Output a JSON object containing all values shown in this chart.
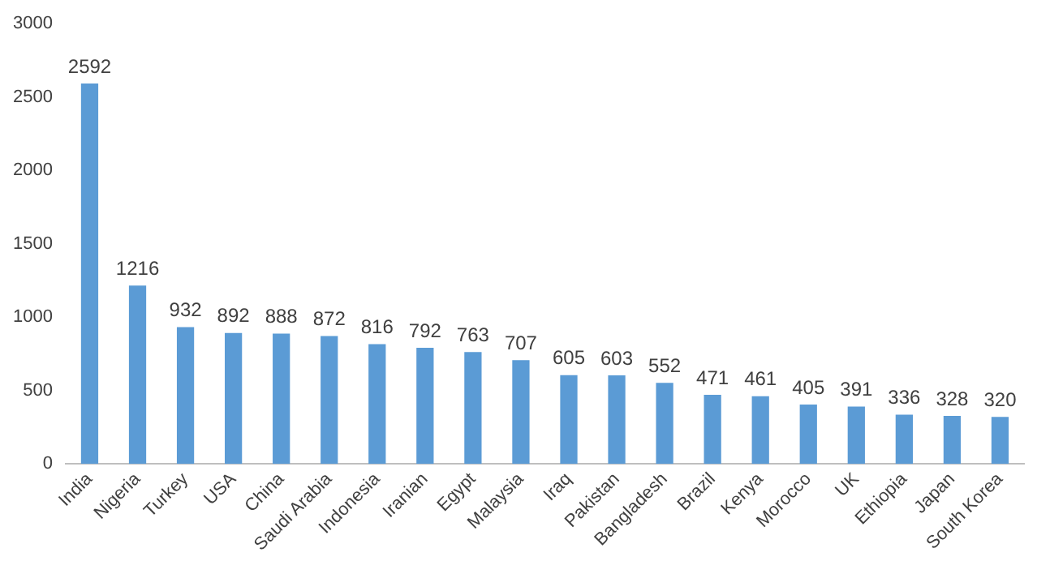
{
  "chart_data": {
    "type": "bar",
    "categories": [
      "India",
      "Nigeria",
      "Turkey",
      "USA",
      "China",
      "Saudi Arabia",
      "Indonesia",
      "Iranian",
      "Egypt",
      "Malaysia",
      "Iraq",
      "Pakistan",
      "Bangladesh",
      "Brazil",
      "Kenya",
      "Morocco",
      "UK",
      "Ethiopia",
      "Japan",
      "South Korea"
    ],
    "values": [
      2592,
      1216,
      932,
      892,
      888,
      872,
      816,
      792,
      763,
      707,
      605,
      603,
      552,
      471,
      461,
      405,
      391,
      336,
      328,
      320
    ],
    "color": "#5b9bd5",
    "ylim": [
      0,
      3000
    ],
    "yticks": [
      0,
      500,
      1000,
      1500,
      2000,
      2500,
      3000
    ],
    "grid": false,
    "legend": false,
    "data_labels": true
  }
}
